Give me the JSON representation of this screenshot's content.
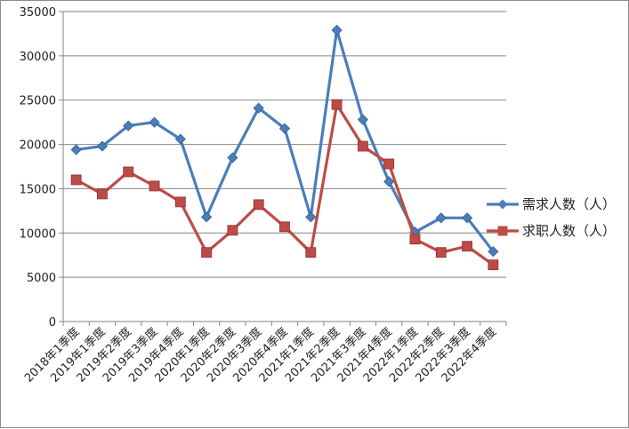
{
  "chart_data": {
    "type": "line",
    "categories": [
      "2018年1季度",
      "2019年1季度",
      "2019年2季度",
      "2019年3季度",
      "2019年4季度",
      "2020年1季度",
      "2020年2季度",
      "2020年3季度",
      "2020年4季度",
      "2021年1季度",
      "2021年2季度",
      "2021年3季度",
      "2021年4季度",
      "2022年1季度",
      "2022年2季度",
      "2022年3季度",
      "2022年4季度"
    ],
    "series": [
      {
        "name": "需求人数（人）",
        "color": "#4a7ebb",
        "marker": "diamond",
        "values": [
          19400,
          19800,
          22100,
          22500,
          20600,
          11800,
          18500,
          24100,
          21800,
          11800,
          32900,
          22800,
          15800,
          10100,
          11700,
          11700,
          7900
        ]
      },
      {
        "name": "求职人数（人）",
        "color": "#be4b48",
        "marker": "square",
        "values": [
          16000,
          14400,
          16900,
          15300,
          13500,
          7800,
          10300,
          13200,
          10700,
          7800,
          24500,
          19800,
          17800,
          9300,
          7800,
          8500,
          6400
        ]
      }
    ],
    "yticks": [
      "0",
      "5000",
      "10000",
      "15000",
      "20000",
      "25000",
      "30000",
      "35000"
    ],
    "ylim": [
      0,
      35000
    ],
    "grid": true,
    "legend_position": "right"
  }
}
